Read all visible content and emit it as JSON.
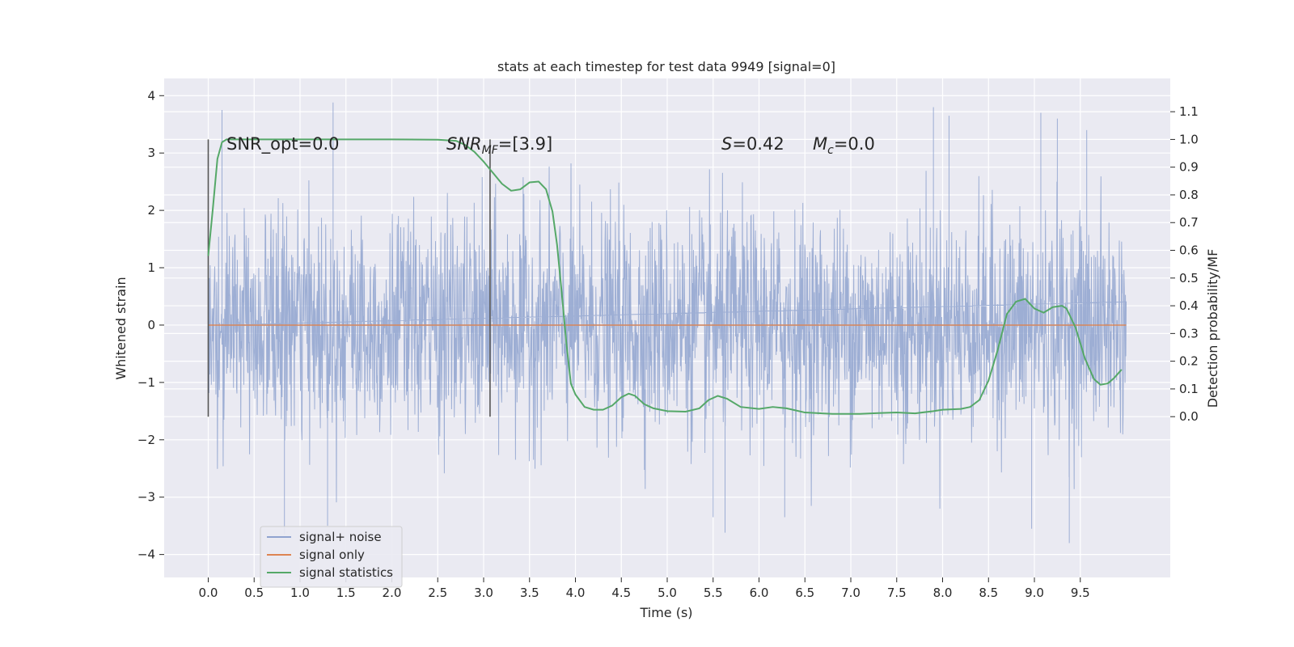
{
  "chart_data": {
    "type": "line",
    "title": "stats at each timestep for test data 9949 [signal=0]",
    "xlabel": "Time (s)",
    "ylabel": "Whitened strain",
    "y2label": "Detection probability/MF",
    "xlim": [
      -0.48,
      10.48
    ],
    "ylim": [
      -4.4,
      4.3
    ],
    "y2lim": [
      -0.58,
      1.22
    ],
    "x_ticks": [
      "0.0",
      "0.5",
      "1.0",
      "1.5",
      "2.0",
      "2.5",
      "3.0",
      "3.5",
      "4.0",
      "4.5",
      "5.0",
      "5.5",
      "6.0",
      "6.5",
      "7.0",
      "7.5",
      "8.0",
      "8.5",
      "9.0",
      "9.5"
    ],
    "y_ticks": [
      "4",
      "3",
      "2",
      "1",
      "0",
      "−1",
      "−2",
      "−3",
      "−4"
    ],
    "y2_ticks": [
      "1.1",
      "1.0",
      "0.9",
      "0.8",
      "0.7",
      "0.6",
      "0.5",
      "0.4",
      "0.3",
      "0.2",
      "0.1",
      "0.0"
    ],
    "grid": true,
    "legend_position": "bottom-left",
    "annotations": {
      "snr_opt": "SNR_opt=0.0",
      "snr_mf_main": "SNR",
      "snr_mf_sub": "MF",
      "snr_mf_value": "=[3.9]",
      "s_main": "S",
      "s_value": "=0.42",
      "mc_main": "M",
      "mc_sub": "c",
      "mc_value": "=0.0"
    },
    "vertical_markers": [
      0.0,
      3.07
    ],
    "series": [
      {
        "name": "signal+ noise",
        "color": "#8fa3cf",
        "axis": "left",
        "x_range": [
          0.0,
          10.0
        ],
        "envelope_quantiles": {
          "p25": -0.7,
          "p75": 0.7,
          "p99_high": 2.3,
          "p99_low": -2.3
        },
        "extremes": [
          {
            "x": 0.15,
            "y": 3.75
          },
          {
            "x": 1.36,
            "y": 3.88
          },
          {
            "x": 0.83,
            "y": -3.65
          },
          {
            "x": 1.3,
            "y": -3.5
          },
          {
            "x": 5.63,
            "y": -3.62
          },
          {
            "x": 8.97,
            "y": -3.55
          },
          {
            "x": 9.38,
            "y": -3.8
          },
          {
            "x": 7.9,
            "y": 3.8
          },
          {
            "x": 8.07,
            "y": 3.65
          },
          {
            "x": 9.07,
            "y": 3.7
          },
          {
            "x": 9.25,
            "y": 3.6
          },
          {
            "x": 9.57,
            "y": 3.4
          },
          {
            "x": 6.28,
            "y": -3.35
          },
          {
            "x": 5.5,
            "y": -3.35
          }
        ]
      },
      {
        "name": "signal only",
        "color": "#dd8452",
        "axis": "left",
        "x": [
          0.0,
          10.0
        ],
        "y": [
          0.0,
          0.0
        ]
      },
      {
        "name": "signal statistics",
        "color": "#55a868",
        "axis": "right",
        "x": [
          0.0,
          0.05,
          0.1,
          0.15,
          0.2,
          0.3,
          0.5,
          1.0,
          1.5,
          2.0,
          2.5,
          2.7,
          2.8,
          2.9,
          3.0,
          3.1,
          3.2,
          3.3,
          3.4,
          3.5,
          3.6,
          3.68,
          3.75,
          3.8,
          3.85,
          3.9,
          3.95,
          4.0,
          4.1,
          4.2,
          4.3,
          4.4,
          4.5,
          4.58,
          4.65,
          4.75,
          4.85,
          5.0,
          5.2,
          5.35,
          5.45,
          5.55,
          5.65,
          5.8,
          6.0,
          6.15,
          6.3,
          6.5,
          6.8,
          7.1,
          7.3,
          7.5,
          7.7,
          7.9,
          8.0,
          8.2,
          8.3,
          8.4,
          8.5,
          8.6,
          8.7,
          8.8,
          8.9,
          9.0,
          9.1,
          9.2,
          9.3,
          9.35,
          9.45,
          9.55,
          9.65,
          9.72,
          9.8,
          9.87,
          9.95
        ],
        "y": [
          0.58,
          0.75,
          0.93,
          0.99,
          1.0,
          1.0,
          1.0,
          1.0,
          1.0,
          1.0,
          0.999,
          0.995,
          0.98,
          0.955,
          0.92,
          0.88,
          0.84,
          0.815,
          0.82,
          0.845,
          0.848,
          0.82,
          0.74,
          0.62,
          0.45,
          0.27,
          0.12,
          0.08,
          0.035,
          0.025,
          0.025,
          0.04,
          0.07,
          0.083,
          0.075,
          0.045,
          0.03,
          0.02,
          0.018,
          0.03,
          0.06,
          0.075,
          0.065,
          0.035,
          0.028,
          0.035,
          0.03,
          0.015,
          0.01,
          0.01,
          0.013,
          0.015,
          0.012,
          0.02,
          0.025,
          0.028,
          0.035,
          0.06,
          0.13,
          0.24,
          0.37,
          0.415,
          0.425,
          0.39,
          0.375,
          0.395,
          0.4,
          0.39,
          0.32,
          0.21,
          0.135,
          0.115,
          0.12,
          0.14,
          0.17
        ]
      }
    ]
  }
}
